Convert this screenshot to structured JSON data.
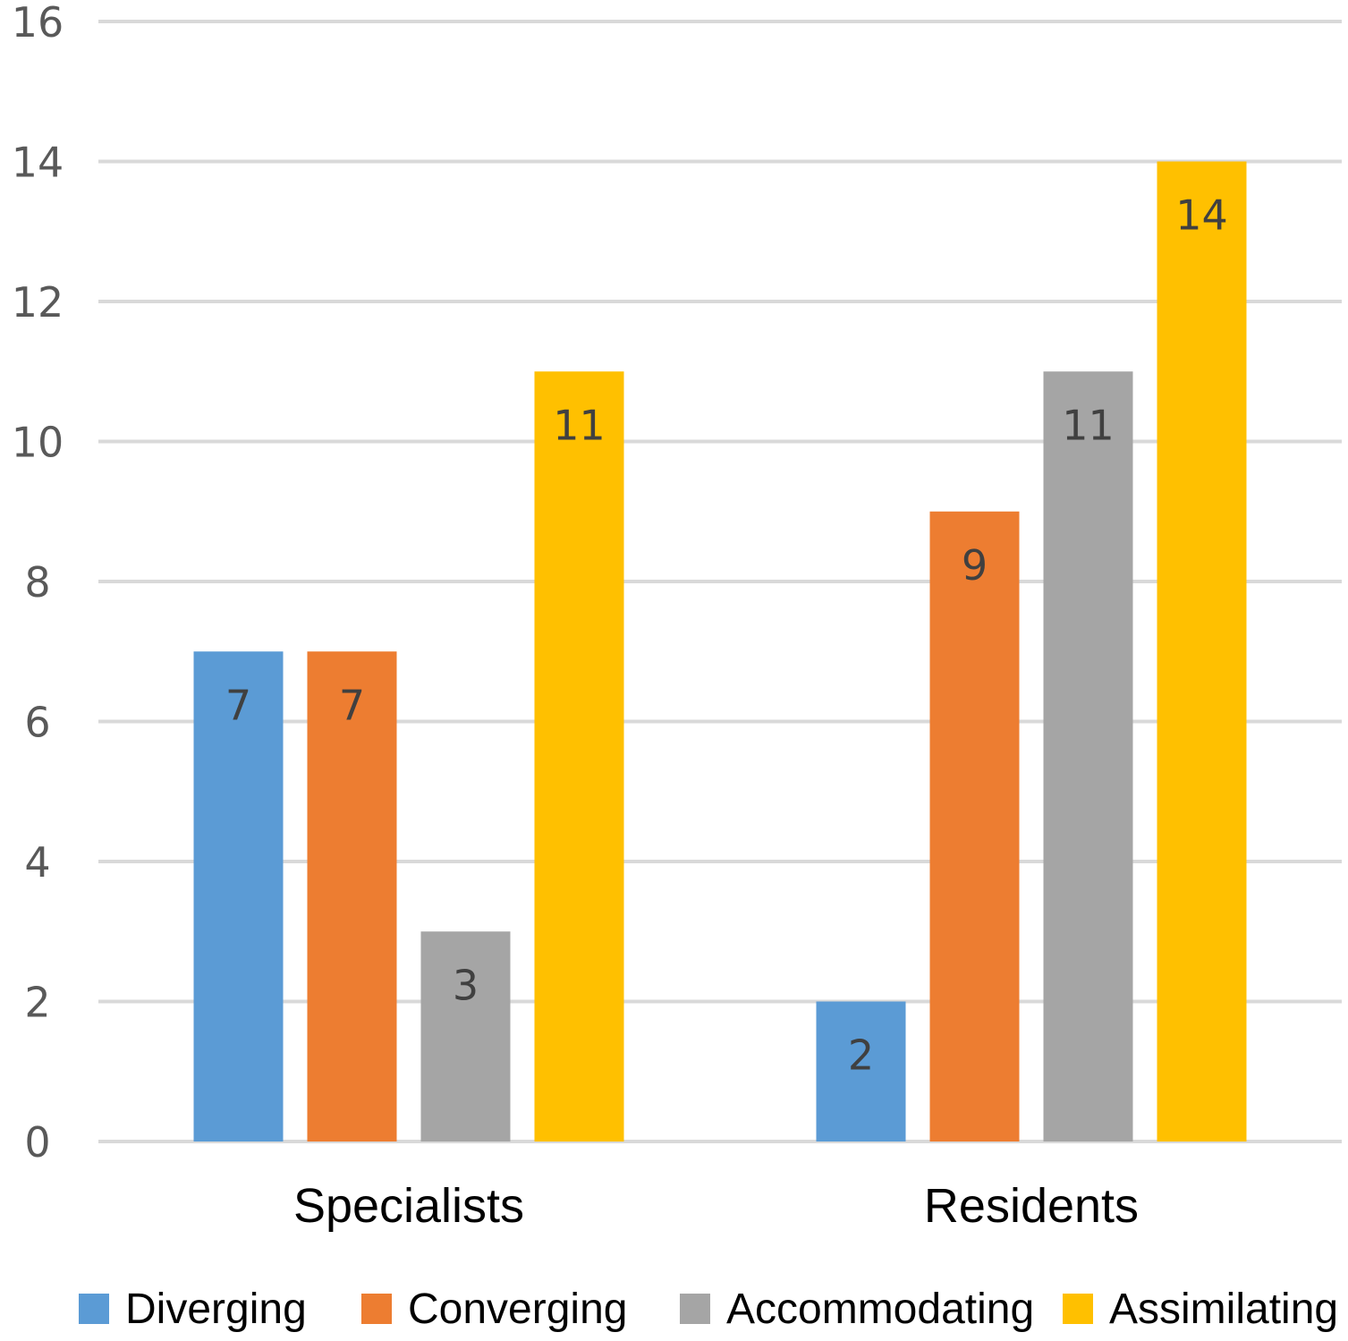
{
  "chart_data": {
    "type": "bar",
    "categories": [
      "Specialists",
      "Residents"
    ],
    "series": [
      {
        "name": "Diverging",
        "values": [
          7,
          2
        ],
        "color": "#5b9bd5"
      },
      {
        "name": "Converging",
        "values": [
          7,
          9
        ],
        "color": "#ed7d31"
      },
      {
        "name": "Accommodating",
        "values": [
          3,
          11
        ],
        "color": "#a5a5a5"
      },
      {
        "name": "Assimilating",
        "values": [
          11,
          14
        ],
        "color": "#ffc000"
      }
    ],
    "ylim": [
      0,
      16
    ],
    "yticks": [
      0,
      2,
      4,
      6,
      8,
      10,
      12,
      14,
      16
    ],
    "grid": true,
    "data_labels": true,
    "legend_position": "bottom",
    "title": "",
    "xlabel": "",
    "ylabel": ""
  }
}
